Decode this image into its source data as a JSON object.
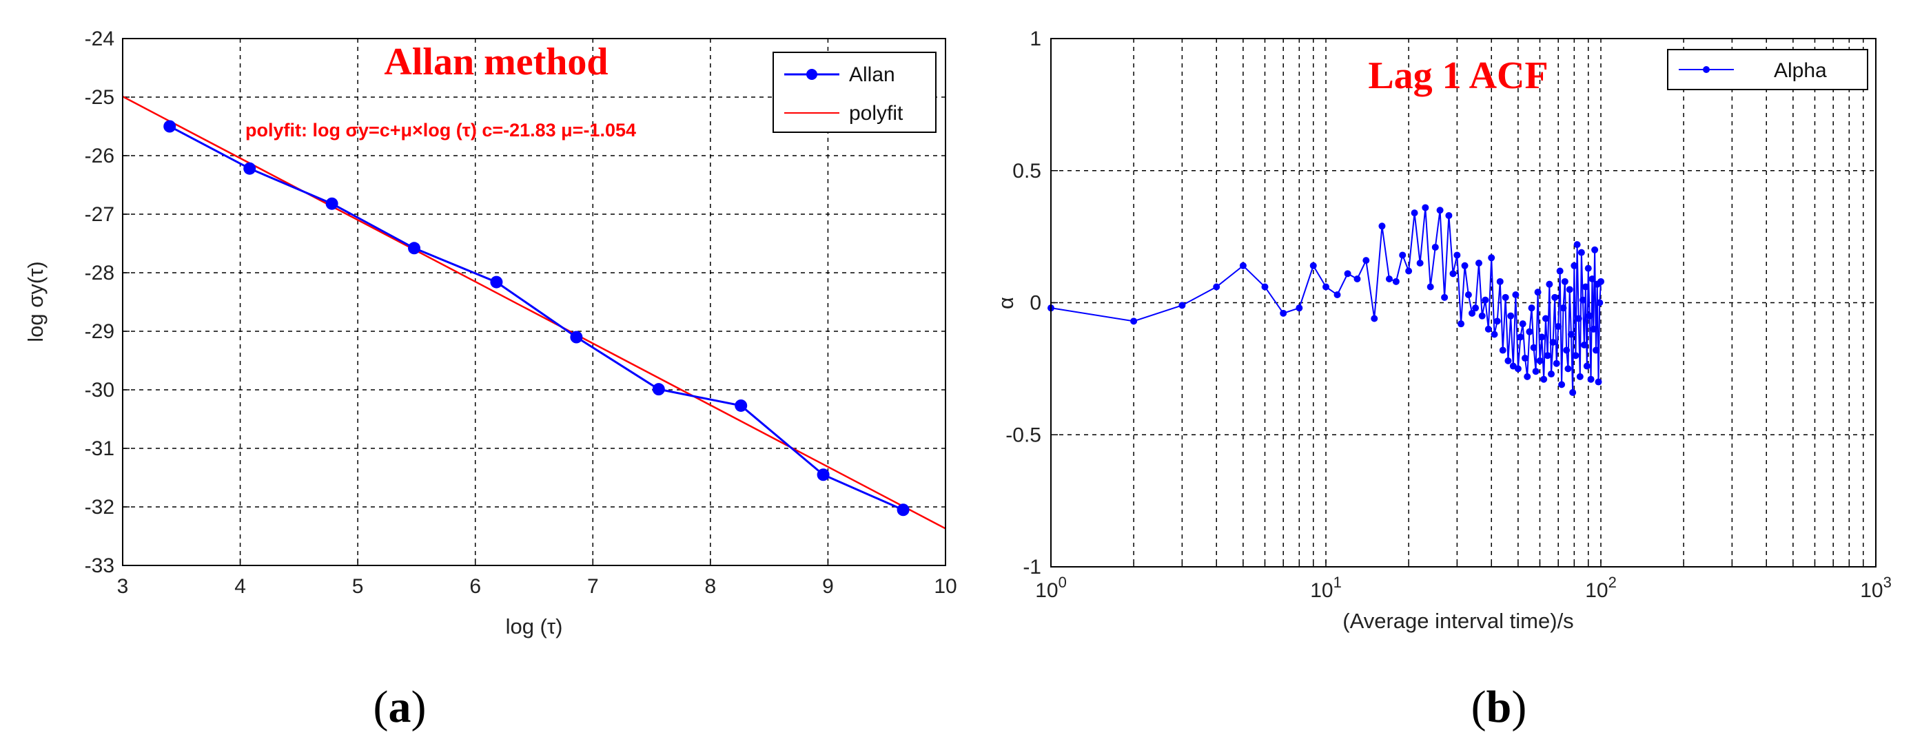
{
  "figure": {
    "panels": [
      {
        "caption_open": "(",
        "caption_letter": "a",
        "caption_close": ")"
      },
      {
        "caption_open": "(",
        "caption_letter": "b",
        "caption_close": ")"
      }
    ]
  },
  "chart_data": [
    {
      "type": "line",
      "title": "Allan method",
      "annotation": "polyfit: log σy=c+μ×log (τ) c=-21.83 μ=-1.054",
      "xlabel": "log (τ)",
      "ylabel": "log σy(τ)",
      "xlim": [
        3,
        10
      ],
      "ylim": [
        -33,
        -24
      ],
      "xticks": [
        3,
        4,
        5,
        6,
        7,
        8,
        9,
        10
      ],
      "yticks": [
        -33,
        -32,
        -31,
        -30,
        -29,
        -28,
        -27,
        -26,
        -25,
        -24
      ],
      "grid": true,
      "legend_position": "top-right",
      "series": [
        {
          "name": "Allan",
          "color": "#0000ff",
          "marker": "circle",
          "x": [
            3.4,
            4.08,
            4.78,
            5.48,
            6.18,
            6.86,
            7.56,
            8.26,
            8.96,
            9.64
          ],
          "y": [
            -25.5,
            -26.22,
            -26.82,
            -27.58,
            -28.16,
            -29.1,
            -29.99,
            -30.27,
            -31.45,
            -32.05
          ]
        },
        {
          "name": "polyfit",
          "color": "#ff0000",
          "marker": "none",
          "x": [
            3,
            10
          ],
          "y": [
            -24.99,
            -32.37
          ]
        }
      ]
    },
    {
      "type": "line",
      "title": "Lag 1  ACF",
      "xlabel": "(Average interval time)/s",
      "ylabel": "α",
      "xscale": "log",
      "xlim": [
        1,
        1000
      ],
      "ylim": [
        -1,
        1
      ],
      "xticks_major": [
        "10^0",
        "10^1",
        "10^2",
        "10^3"
      ],
      "yticks": [
        -1,
        -0.5,
        0,
        0.5,
        1
      ],
      "grid": true,
      "legend_position": "top-right",
      "series": [
        {
          "name": "Alpha",
          "color": "#0000ff",
          "marker": "dot",
          "x": [
            1,
            2,
            3,
            4,
            5,
            6,
            7,
            8,
            9,
            10,
            11,
            12,
            13,
            14,
            15,
            16,
            17,
            18,
            19,
            20,
            21,
            22,
            23,
            24,
            25,
            26,
            27,
            28,
            29,
            30,
            31,
            32,
            33,
            34,
            35,
            36,
            37,
            38,
            39,
            40,
            41,
            42,
            43,
            44,
            45,
            46,
            47,
            48,
            49,
            50,
            51,
            52,
            53,
            54,
            55,
            56,
            57,
            58,
            59,
            60,
            61,
            62,
            63,
            64,
            65,
            66,
            67,
            68,
            69,
            70,
            71,
            72,
            73,
            74,
            75,
            76,
            77,
            78,
            79,
            80,
            81,
            82,
            83,
            84,
            85,
            86,
            87,
            88,
            89,
            90,
            91,
            92,
            93,
            94,
            95,
            96,
            97,
            98,
            99,
            100
          ],
          "y": [
            -0.02,
            -0.07,
            -0.01,
            0.06,
            0.14,
            0.06,
            -0.04,
            -0.02,
            0.14,
            0.06,
            0.03,
            0.11,
            0.09,
            0.16,
            -0.06,
            0.29,
            0.09,
            0.08,
            0.18,
            0.12,
            0.34,
            0.15,
            0.36,
            0.06,
            0.21,
            0.35,
            0.02,
            0.33,
            0.11,
            0.18,
            -0.08,
            0.14,
            0.03,
            -0.04,
            -0.02,
            0.15,
            -0.05,
            0.01,
            -0.1,
            0.17,
            -0.12,
            -0.07,
            0.08,
            -0.18,
            0.02,
            -0.22,
            -0.05,
            -0.24,
            0.03,
            -0.25,
            -0.13,
            -0.08,
            -0.21,
            -0.28,
            -0.11,
            -0.02,
            -0.17,
            -0.26,
            0.04,
            -0.22,
            -0.13,
            -0.29,
            -0.06,
            -0.2,
            0.07,
            -0.27,
            -0.15,
            0.02,
            -0.23,
            -0.09,
            0.12,
            -0.31,
            -0.02,
            0.08,
            -0.18,
            -0.25,
            0.05,
            -0.12,
            -0.34,
            0.14,
            -0.2,
            0.22,
            -0.06,
            -0.28,
            0.19,
            0.01,
            -0.16,
            0.06,
            -0.24,
            0.13,
            -0.05,
            -0.29,
            0.09,
            -0.1,
            0.2,
            -0.18,
            0.07,
            -0.3,
            0.0,
            0.08
          ]
        }
      ]
    }
  ]
}
